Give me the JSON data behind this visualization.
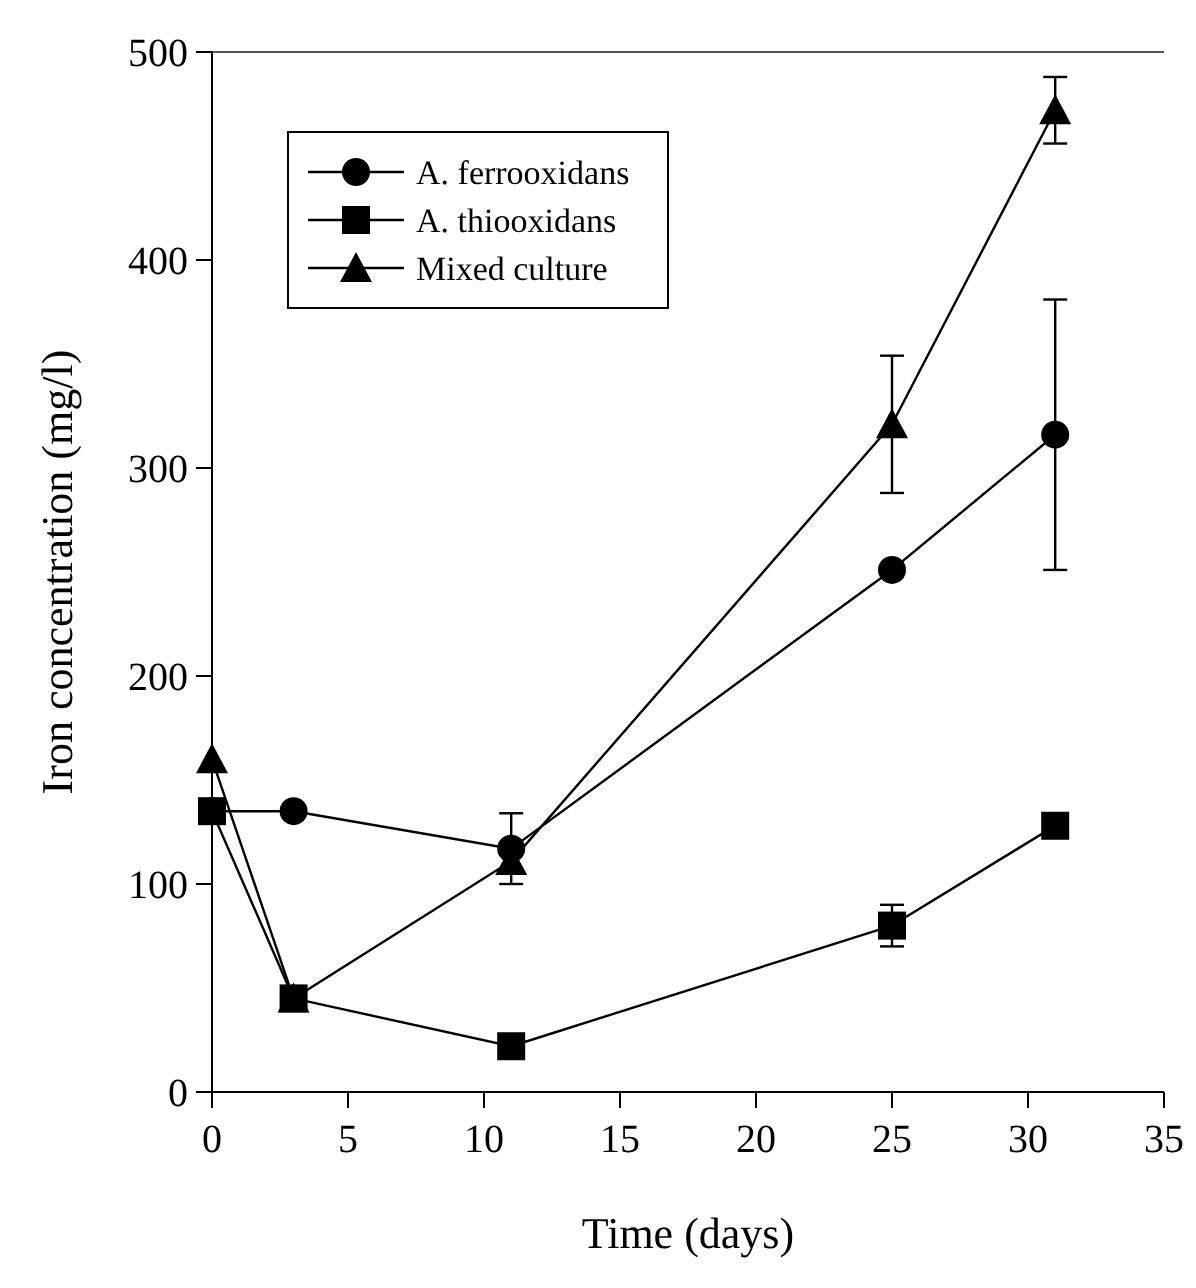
{
  "chart_data": {
    "type": "line",
    "xlabel": "Time (days)",
    "ylabel": "Iron concentration (mg/l)",
    "xlim": [
      0,
      35
    ],
    "xticks": [
      0,
      5,
      10,
      15,
      20,
      25,
      30,
      35
    ],
    "ylim": [
      0,
      500
    ],
    "yticks": [
      0,
      100,
      200,
      300,
      400,
      500
    ],
    "x": [
      0,
      3,
      11,
      25,
      31
    ],
    "grid": false,
    "legend": "top left",
    "line_style": "solid",
    "series": [
      {
        "name": "A. ferrooxidans",
        "color": "#000000",
        "marker": "circle",
        "values": [
          135,
          135,
          117,
          251,
          316
        ],
        "errors": [
          null,
          null,
          17,
          null,
          65
        ]
      },
      {
        "name": "A. thiooxidans",
        "color": "#000000",
        "marker": "square",
        "values": [
          135,
          45,
          22,
          80,
          128
        ],
        "errors": [
          null,
          null,
          null,
          10,
          3
        ]
      },
      {
        "name": "Mixed culture",
        "color": "#000000",
        "marker": "triangle",
        "values": [
          160,
          45,
          111,
          321,
          472
        ],
        "errors": [
          null,
          null,
          null,
          33,
          16
        ]
      }
    ]
  }
}
